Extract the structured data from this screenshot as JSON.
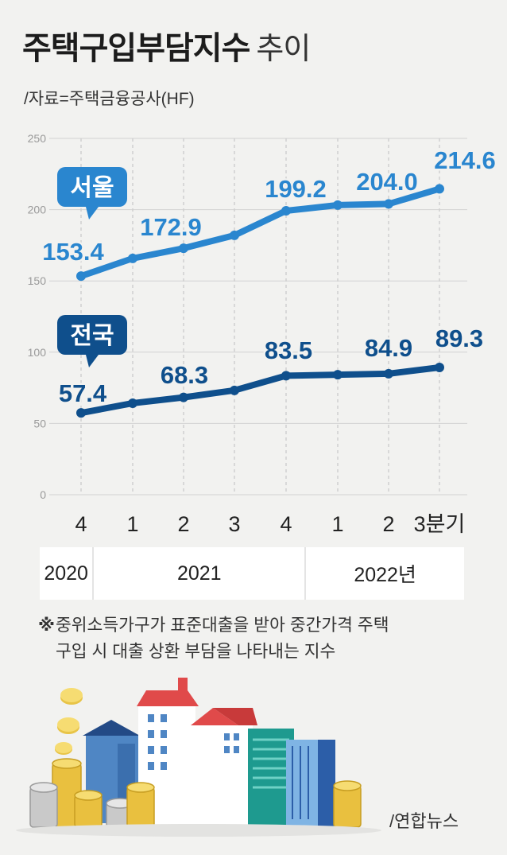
{
  "title": "주택구입부담지수",
  "title_suffix": "추이",
  "source": "/자료=주택금융공사(HF)",
  "chart_data": {
    "type": "line",
    "categories": [
      "4",
      "1",
      "2",
      "3",
      "4",
      "1",
      "2",
      "3분기"
    ],
    "years": [
      {
        "label": "2020",
        "span": 1
      },
      {
        "label": "2021",
        "span": 4
      },
      {
        "label": "2022년",
        "span": 3
      }
    ],
    "ylim": [
      0,
      250
    ],
    "yticks": [
      0,
      50,
      100,
      150,
      200,
      250
    ],
    "grid": true,
    "series": [
      {
        "name": "서울",
        "color": "#2a86cf",
        "values": [
          153.4,
          165.8,
          172.9,
          182.0,
          199.2,
          203.2,
          204.0,
          214.6
        ],
        "labels": [
          "153.4",
          "",
          "172.9",
          "",
          "199.2",
          "",
          "204.0",
          "214.6"
        ]
      },
      {
        "name": "전국",
        "color": "#0f4f8c",
        "values": [
          57.4,
          64.2,
          68.3,
          73.2,
          83.5,
          84.2,
          84.9,
          89.3
        ],
        "labels": [
          "57.4",
          "",
          "68.3",
          "",
          "83.5",
          "",
          "84.9",
          "89.3"
        ]
      }
    ]
  },
  "note": {
    "mark": "※",
    "line1": "중위소득가구가 표준대출을 받아 중간가격 주택",
    "line2": "구입 시 대출 상환 부담을 나타내는 지수"
  },
  "credit": "/연합뉴스",
  "illustration": "city-buildings-and-coin-stacks"
}
